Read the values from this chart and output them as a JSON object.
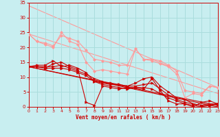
{
  "background_color": "#c8eef0",
  "grid_color": "#aadddd",
  "line_color_dark": "#cc0000",
  "line_color_light": "#ff9999",
  "xlabel": "Vent moyen/en rafales ( km/h )",
  "xlim": [
    0,
    23
  ],
  "ylim": [
    0,
    35
  ],
  "xticks": [
    0,
    1,
    2,
    3,
    4,
    5,
    6,
    7,
    8,
    9,
    10,
    11,
    12,
    13,
    14,
    15,
    16,
    17,
    18,
    19,
    20,
    21,
    22,
    23
  ],
  "yticks": [
    0,
    5,
    10,
    15,
    20,
    25,
    30,
    35
  ],
  "series_dark": [
    [
      13.5,
      14.0,
      14.0,
      15.5,
      13.5,
      14.0,
      13.0,
      11.5,
      8.5,
      8.0,
      7.5,
      7.5,
      7.0,
      8.0,
      9.5,
      10.0,
      7.0,
      5.0,
      3.0,
      2.5,
      1.0,
      0.5,
      1.0,
      1.0
    ],
    [
      13.5,
      13.5,
      13.5,
      13.5,
      14.0,
      13.0,
      12.0,
      11.0,
      9.5,
      8.5,
      8.0,
      7.5,
      7.0,
      7.0,
      7.5,
      8.0,
      6.0,
      4.0,
      2.5,
      1.5,
      1.0,
      0.5,
      0.5,
      1.0
    ],
    [
      13.5,
      13.5,
      13.0,
      14.5,
      15.0,
      13.5,
      12.5,
      1.5,
      0.5,
      7.0,
      6.5,
      6.0,
      6.5,
      6.5,
      6.0,
      9.5,
      5.5,
      2.0,
      1.0,
      1.0,
      0.0,
      1.5,
      2.0,
      1.0
    ],
    [
      13.5,
      13.5,
      13.0,
      13.0,
      13.0,
      12.5,
      11.5,
      10.5,
      8.5,
      7.5,
      7.0,
      6.5,
      6.0,
      6.5,
      6.5,
      6.0,
      4.5,
      3.0,
      2.0,
      1.0,
      0.5,
      0.0,
      0.5,
      1.0
    ]
  ],
  "series_light": [
    [
      24.5,
      22.0,
      21.0,
      20.0,
      25.0,
      22.0,
      21.0,
      15.0,
      12.0,
      12.5,
      12.0,
      11.5,
      11.0,
      19.5,
      16.0,
      15.5,
      14.5,
      13.5,
      11.0,
      3.0,
      4.5,
      4.0,
      7.0,
      6.5
    ],
    [
      24.5,
      22.0,
      21.5,
      20.5,
      24.0,
      23.0,
      22.0,
      19.0,
      16.0,
      15.5,
      15.0,
      14.0,
      14.0,
      19.5,
      16.0,
      16.0,
      15.5,
      14.0,
      12.0,
      5.5,
      5.0,
      4.5,
      7.0,
      6.5
    ]
  ],
  "series_straight_dark": [
    {
      "x": [
        0,
        23
      ],
      "y": [
        13.5,
        0.5
      ]
    },
    {
      "x": [
        0,
        23
      ],
      "y": [
        13.5,
        0.0
      ]
    }
  ],
  "series_straight_light": [
    {
      "x": [
        0,
        23
      ],
      "y": [
        34.0,
        6.5
      ]
    },
    {
      "x": [
        0,
        23
      ],
      "y": [
        24.5,
        4.5
      ]
    }
  ]
}
